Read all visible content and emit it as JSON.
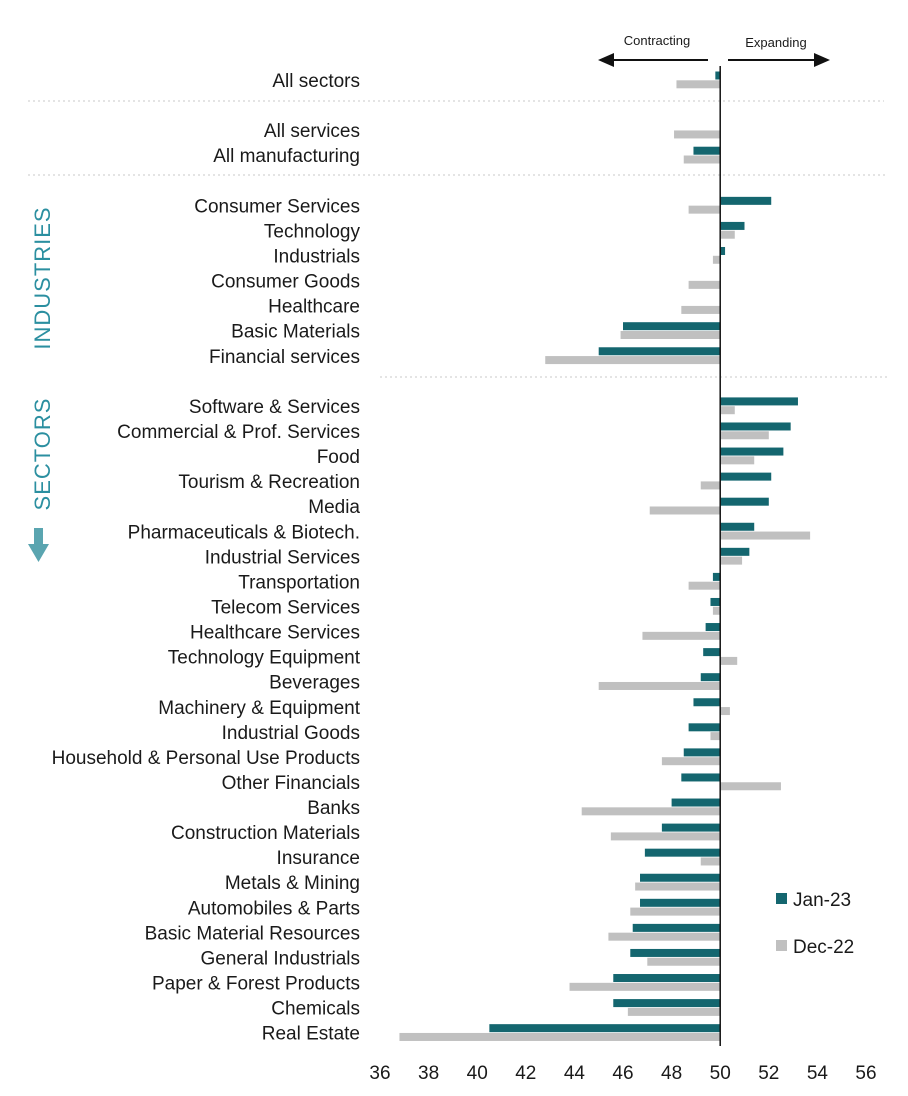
{
  "side_labels": {
    "industries": "INDUSTRIES",
    "sectors": "SECTORS"
  },
  "direction": {
    "left": "Contracting",
    "right": "Expanding"
  },
  "colors": {
    "jan": "#14666f",
    "dec": "#c0c0c0",
    "side": "#2b8fa0"
  },
  "chart_data": {
    "type": "bar",
    "orientation": "horizontal",
    "baseline": 50,
    "xlim": [
      36,
      56
    ],
    "x_ticks": [
      36,
      38,
      40,
      42,
      44,
      46,
      48,
      50,
      52,
      54,
      56
    ],
    "legend_position": "right",
    "categories": [
      "All sectors",
      "All services",
      "All manufacturing",
      "Consumer Services",
      "Technology",
      "Industrials",
      "Consumer Goods",
      "Healthcare",
      "Basic Materials",
      "Financial services",
      "Software & Services",
      "Commercial & Prof. Services",
      "Food",
      "Tourism & Recreation",
      "Media",
      "Pharmaceuticals & Biotech.",
      "Industrial Services",
      "Transportation",
      "Telecom Services",
      "Healthcare Services",
      "Technology Equipment",
      "Beverages",
      "Machinery & Equipment",
      "Industrial Goods",
      "Household & Personal Use Products",
      "Other Financials",
      "Banks",
      "Construction Materials",
      "Insurance",
      "Metals & Mining",
      "Automobiles & Parts",
      "Basic Material Resources",
      "General Industrials",
      "Paper & Forest Products",
      "Chemicals",
      "Real Estate"
    ],
    "groups": [
      {
        "name": "",
        "count": 1
      },
      {
        "name": "",
        "count": 2
      },
      {
        "name": "INDUSTRIES",
        "count": 7
      },
      {
        "name": "SECTORS",
        "count": 26
      }
    ],
    "series": [
      {
        "name": "Jan-23",
        "values": [
          49.8,
          50.0,
          48.9,
          52.1,
          51.0,
          50.2,
          50.0,
          50.0,
          46.0,
          45.0,
          53.2,
          52.9,
          52.6,
          52.1,
          52.0,
          51.4,
          51.2,
          49.7,
          49.6,
          49.4,
          49.3,
          49.2,
          48.9,
          48.7,
          48.5,
          48.4,
          48.0,
          47.6,
          46.9,
          46.7,
          46.7,
          46.4,
          46.3,
          45.6,
          45.6,
          40.5
        ]
      },
      {
        "name": "Dec-22",
        "values": [
          48.2,
          48.1,
          48.5,
          48.7,
          50.6,
          49.7,
          48.7,
          48.4,
          45.9,
          42.8,
          50.6,
          52.0,
          51.4,
          49.2,
          47.1,
          53.7,
          50.9,
          48.7,
          49.7,
          46.8,
          50.7,
          45.0,
          50.4,
          49.6,
          47.6,
          52.5,
          44.3,
          45.5,
          49.2,
          46.5,
          46.3,
          45.4,
          47.0,
          43.8,
          46.2,
          36.8
        ]
      }
    ]
  }
}
